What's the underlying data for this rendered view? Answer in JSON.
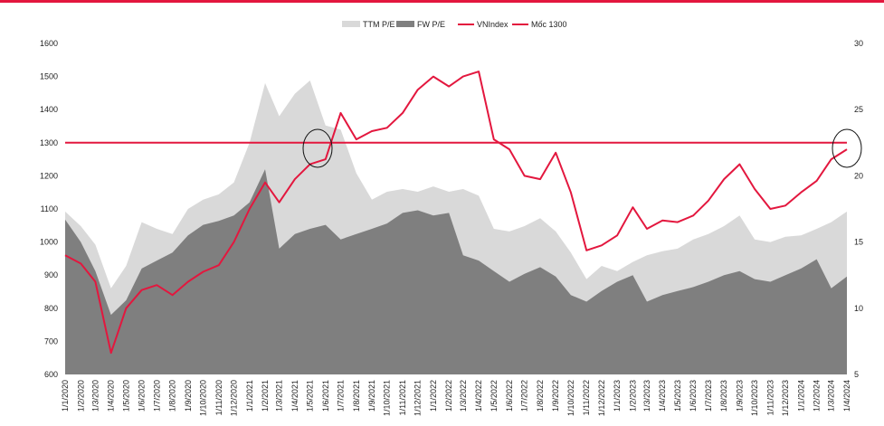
{
  "colors": {
    "accent": "#e3173e",
    "ttm": "#d9d9d9",
    "fw": "#7f7f7f",
    "vnindex": "#e3173e",
    "moc": "#e3173e"
  },
  "legend": [
    "TTM P/E",
    "FW P/E",
    "VNIndex",
    "Mốc 1300"
  ],
  "chart_data": {
    "type": "area",
    "x_start": "1/1/2020",
    "x_end": "1/4/2024",
    "x_ticks": [
      "1/1/2020",
      "1/2/2020",
      "1/3/2020",
      "1/4/2020",
      "1/5/2020",
      "1/6/2020",
      "1/7/2020",
      "1/8/2020",
      "1/9/2020",
      "1/10/2020",
      "1/11/2020",
      "1/12/2020",
      "1/1/2021",
      "1/2/2021",
      "1/3/2021",
      "1/4/2021",
      "1/5/2021",
      "1/6/2021",
      "1/7/2021",
      "1/8/2021",
      "1/9/2021",
      "1/10/2021",
      "1/11/2021",
      "1/12/2021",
      "1/1/2022",
      "1/2/2022",
      "1/3/2022",
      "1/4/2022",
      "1/5/2022",
      "1/6/2022",
      "1/7/2022",
      "1/8/2022",
      "1/9/2022",
      "1/10/2022",
      "1/11/2022",
      "1/12/2022",
      "1/1/2023",
      "1/2/2023",
      "1/3/2023",
      "1/4/2023",
      "1/5/2023",
      "1/6/2023",
      "1/7/2023",
      "1/8/2023",
      "1/9/2023",
      "1/10/2023",
      "1/11/2023",
      "1/12/2023",
      "1/1/2024",
      "1/2/2024",
      "1/3/2024",
      "1/4/2024"
    ],
    "y_left": {
      "range": [
        600,
        1600
      ],
      "ticks": [
        "600",
        "700",
        "800",
        "900",
        "1000",
        "1100",
        "1200",
        "1300",
        "1400",
        "1500",
        "1600"
      ]
    },
    "y_right": {
      "range": [
        5,
        30
      ],
      "ticks": [
        "5",
        "10",
        "15",
        "20",
        "25",
        "30"
      ]
    },
    "series": [
      {
        "name": "TTM P/E",
        "axis": "right",
        "points": [
          [
            "1/1/2020",
            17.3
          ],
          [
            "1/2/2020",
            16.2
          ],
          [
            "1/3/2020",
            14.8
          ],
          [
            "1/4/2020",
            11.5
          ],
          [
            "1/5/2020",
            13.2
          ],
          [
            "1/6/2020",
            16.5
          ],
          [
            "1/7/2020",
            16.0
          ],
          [
            "1/8/2020",
            15.6
          ],
          [
            "1/9/2020",
            17.5
          ],
          [
            "1/10/2020",
            18.2
          ],
          [
            "1/11/2020",
            18.6
          ],
          [
            "1/12/2020",
            19.5
          ],
          [
            "1/1/2021",
            22.5
          ],
          [
            "1/2/2021",
            27.0
          ],
          [
            "1/3/2021",
            24.5
          ],
          [
            "1/4/2021",
            26.2
          ],
          [
            "1/5/2021",
            27.2
          ],
          [
            "1/6/2021",
            23.8
          ],
          [
            "1/7/2021",
            23.5
          ],
          [
            "1/8/2021",
            20.2
          ],
          [
            "1/9/2021",
            18.2
          ],
          [
            "1/10/2021",
            18.8
          ],
          [
            "1/11/2021",
            19.0
          ],
          [
            "1/12/2021",
            18.8
          ],
          [
            "1/1/2022",
            19.2
          ],
          [
            "1/2/2022",
            18.8
          ],
          [
            "1/3/2022",
            19.0
          ],
          [
            "1/4/2022",
            18.5
          ],
          [
            "1/5/2022",
            16.0
          ],
          [
            "1/6/2022",
            15.8
          ],
          [
            "1/7/2022",
            16.2
          ],
          [
            "1/8/2022",
            16.8
          ],
          [
            "1/9/2022",
            15.8
          ],
          [
            "1/10/2022",
            14.2
          ],
          [
            "1/11/2022",
            12.2
          ],
          [
            "1/12/2022",
            13.2
          ],
          [
            "1/1/2023",
            12.8
          ],
          [
            "1/2/2023",
            13.5
          ],
          [
            "1/3/2023",
            14.0
          ],
          [
            "1/4/2023",
            14.3
          ],
          [
            "1/5/2023",
            14.5
          ],
          [
            "1/6/2023",
            15.2
          ],
          [
            "1/7/2023",
            15.6
          ],
          [
            "1/8/2023",
            16.2
          ],
          [
            "1/9/2023",
            17.0
          ],
          [
            "1/10/2023",
            15.2
          ],
          [
            "1/11/2023",
            15.0
          ],
          [
            "1/12/2023",
            15.4
          ],
          [
            "1/1/2024",
            15.5
          ],
          [
            "1/2/2024",
            16.0
          ],
          [
            "1/3/2024",
            16.5
          ],
          [
            "1/4/2024",
            17.3
          ]
        ]
      },
      {
        "name": "FW P/E",
        "axis": "right",
        "points": [
          [
            "1/1/2020",
            16.7
          ],
          [
            "1/2/2020",
            15.0
          ],
          [
            "1/3/2020",
            12.8
          ],
          [
            "1/4/2020",
            9.5
          ],
          [
            "1/5/2020",
            10.6
          ],
          [
            "1/6/2020",
            13.0
          ],
          [
            "1/7/2020",
            13.6
          ],
          [
            "1/8/2020",
            14.2
          ],
          [
            "1/9/2020",
            15.5
          ],
          [
            "1/10/2020",
            16.3
          ],
          [
            "1/11/2020",
            16.6
          ],
          [
            "1/12/2020",
            17.0
          ],
          [
            "1/1/2021",
            18.0
          ],
          [
            "1/2/2021",
            20.5
          ],
          [
            "1/3/2021",
            14.5
          ],
          [
            "1/4/2021",
            15.6
          ],
          [
            "1/5/2021",
            16.0
          ],
          [
            "1/6/2021",
            16.3
          ],
          [
            "1/7/2021",
            15.2
          ],
          [
            "1/8/2021",
            15.6
          ],
          [
            "1/9/2021",
            16.0
          ],
          [
            "1/10/2021",
            16.4
          ],
          [
            "1/11/2021",
            17.2
          ],
          [
            "1/12/2021",
            17.4
          ],
          [
            "1/1/2022",
            17.0
          ],
          [
            "1/2/2022",
            17.2
          ],
          [
            "1/3/2022",
            14.0
          ],
          [
            "1/4/2022",
            13.6
          ],
          [
            "1/5/2022",
            12.8
          ],
          [
            "1/6/2022",
            12.0
          ],
          [
            "1/7/2022",
            12.6
          ],
          [
            "1/8/2022",
            13.1
          ],
          [
            "1/9/2022",
            12.4
          ],
          [
            "1/10/2022",
            11.0
          ],
          [
            "1/11/2022",
            10.5
          ],
          [
            "1/12/2022",
            11.3
          ],
          [
            "1/1/2023",
            12.0
          ],
          [
            "1/2/2023",
            12.5
          ],
          [
            "1/3/2023",
            10.5
          ],
          [
            "1/4/2023",
            11.0
          ],
          [
            "1/5/2023",
            11.3
          ],
          [
            "1/6/2023",
            11.6
          ],
          [
            "1/7/2023",
            12.0
          ],
          [
            "1/8/2023",
            12.5
          ],
          [
            "1/9/2023",
            12.8
          ],
          [
            "1/10/2023",
            12.2
          ],
          [
            "1/11/2023",
            12.0
          ],
          [
            "1/12/2023",
            12.5
          ],
          [
            "1/1/2024",
            13.0
          ],
          [
            "1/2/2024",
            13.7
          ],
          [
            "1/3/2024",
            11.5
          ],
          [
            "1/4/2024",
            12.4
          ]
        ]
      },
      {
        "name": "VNIndex",
        "axis": "left",
        "points": [
          [
            "1/1/2020",
            960
          ],
          [
            "1/2/2020",
            935
          ],
          [
            "1/3/2020",
            880
          ],
          [
            "1/4/2020",
            665
          ],
          [
            "1/5/2020",
            800
          ],
          [
            "1/6/2020",
            855
          ],
          [
            "1/7/2020",
            870
          ],
          [
            "1/8/2020",
            840
          ],
          [
            "1/9/2020",
            880
          ],
          [
            "1/10/2020",
            910
          ],
          [
            "1/11/2020",
            930
          ],
          [
            "1/12/2020",
            1000
          ],
          [
            "1/1/2021",
            1100
          ],
          [
            "1/2/2021",
            1180
          ],
          [
            "1/3/2021",
            1120
          ],
          [
            "1/4/2021",
            1190
          ],
          [
            "1/5/2021",
            1235
          ],
          [
            "1/6/2021",
            1250
          ],
          [
            "1/7/2021",
            1390
          ],
          [
            "1/8/2021",
            1310
          ],
          [
            "1/9/2021",
            1335
          ],
          [
            "1/10/2021",
            1345
          ],
          [
            "1/11/2021",
            1390
          ],
          [
            "1/12/2021",
            1460
          ],
          [
            "1/1/2022",
            1500
          ],
          [
            "1/2/2022",
            1470
          ],
          [
            "1/3/2022",
            1500
          ],
          [
            "1/4/2022",
            1515
          ],
          [
            "1/5/2022",
            1310
          ],
          [
            "1/6/2022",
            1280
          ],
          [
            "1/7/2022",
            1200
          ],
          [
            "1/8/2022",
            1190
          ],
          [
            "1/9/2022",
            1270
          ],
          [
            "1/10/2022",
            1150
          ],
          [
            "1/11/2022",
            975
          ],
          [
            "1/12/2022",
            990
          ],
          [
            "1/1/2023",
            1020
          ],
          [
            "1/2/2023",
            1105
          ],
          [
            "1/3/2023",
            1040
          ],
          [
            "1/4/2023",
            1065
          ],
          [
            "1/5/2023",
            1060
          ],
          [
            "1/6/2023",
            1080
          ],
          [
            "1/7/2023",
            1125
          ],
          [
            "1/8/2023",
            1190
          ],
          [
            "1/9/2023",
            1235
          ],
          [
            "1/10/2023",
            1160
          ],
          [
            "1/11/2023",
            1100
          ],
          [
            "1/12/2023",
            1110
          ],
          [
            "1/1/2024",
            1150
          ],
          [
            "1/2/2024",
            1185
          ],
          [
            "1/3/2024",
            1250
          ],
          [
            "1/4/2024",
            1280
          ]
        ]
      },
      {
        "name": "Mốc 1300",
        "axis": "left",
        "points": [
          [
            "1/1/2020",
            1300
          ],
          [
            "1/4/2024",
            1300
          ]
        ]
      }
    ]
  }
}
